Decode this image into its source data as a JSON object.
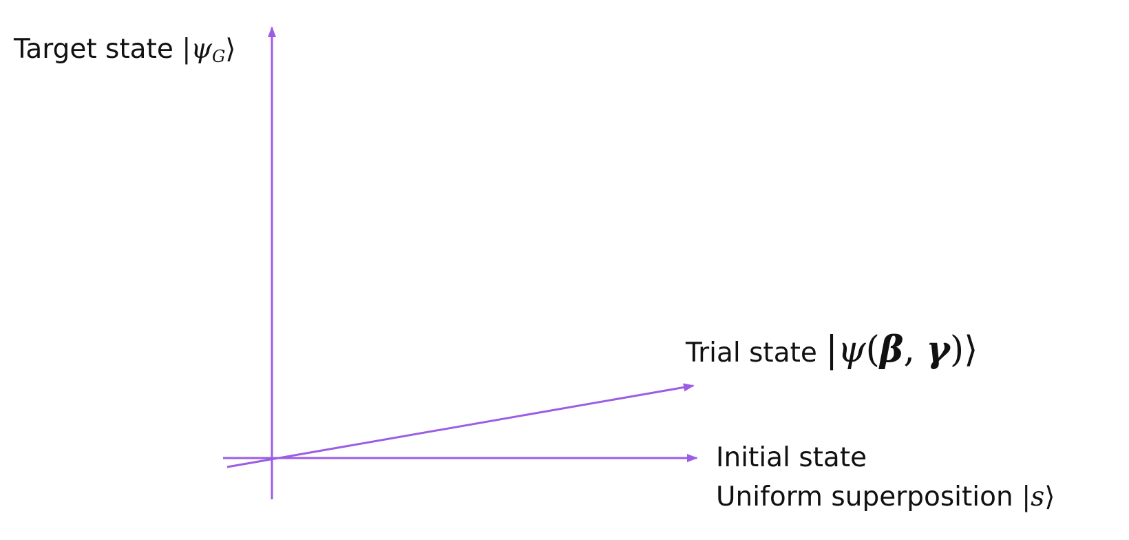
{
  "colors": {
    "axis": "#9b5de5",
    "text": "#111111"
  },
  "labels": {
    "target": {
      "text": "Target state ",
      "math_open": "|",
      "math_symbol": "ψ",
      "math_sub": "G",
      "math_close": "⟩"
    },
    "trial": {
      "text": "Trial state ",
      "math_open": "|",
      "math_symbol": "ψ",
      "math_paren_open": "(",
      "math_beta": "β",
      "math_comma": ", ",
      "math_gamma": "γ",
      "math_paren_close": ")",
      "math_close": "⟩"
    },
    "initial": {
      "line1": "Initial state",
      "line2_text": "Uniform superposition ",
      "math_open": "|",
      "math_symbol": "s",
      "math_close": "⟩"
    }
  }
}
